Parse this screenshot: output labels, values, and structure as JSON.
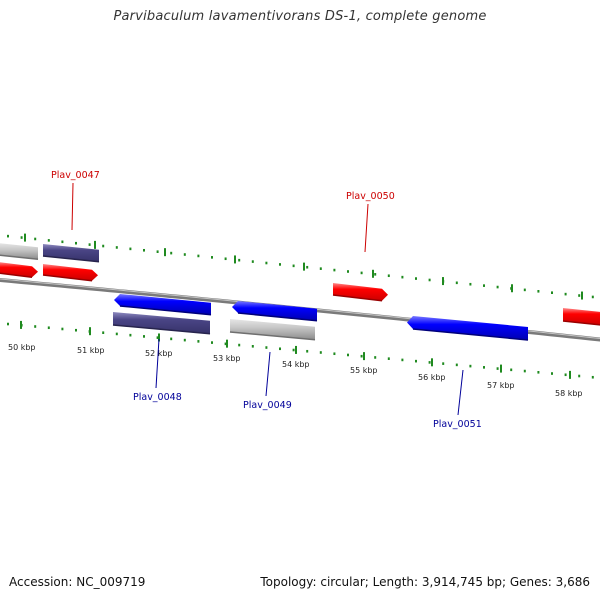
{
  "title": "Parvibaculum lavamentivorans DS-1, complete genome",
  "footer": {
    "accession": "Accession: NC_009719",
    "topology": "Topology: circular; Length: 3,914,745 bp; Genes: 3,686"
  },
  "colors": {
    "forward_gene": "#ff0000",
    "reverse_gene": "#0000ff",
    "other_gene": "#4a4585",
    "pseudo_gene": "#c0c0c0",
    "backbone": "#8a8a8a",
    "ticks": "#1f8a1f",
    "forward_label": "#cc0000",
    "reverse_label": "#000099",
    "kbp_label": "#222222"
  },
  "kbp_labels": [
    "50 kbp",
    "51 kbp",
    "52 kbp",
    "53 kbp",
    "54 kbp",
    "55 kbp",
    "56 kbp",
    "57 kbp",
    "58 kbp"
  ],
  "gene_labels": [
    {
      "name": "Plav_0047",
      "strand": "forward"
    },
    {
      "name": "Plav_0050",
      "strand": "forward"
    },
    {
      "name": "Plav_0048",
      "strand": "reverse"
    },
    {
      "name": "Plav_0049",
      "strand": "reverse"
    },
    {
      "name": "Plav_0051",
      "strand": "reverse"
    }
  ]
}
